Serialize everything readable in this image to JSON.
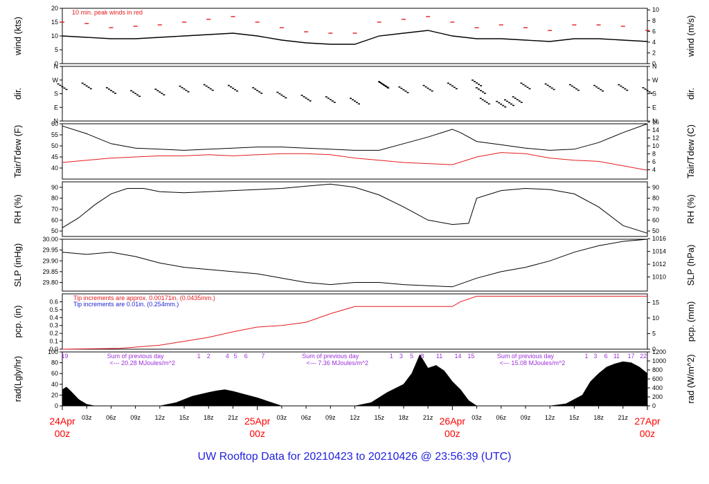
{
  "title": "UW Rooftop Data for 20210423  to  20210426 @ 23:56:39  (UTC)",
  "colors": {
    "primary": "#000000",
    "secondary": "#e41a1c",
    "blue": "#1f1fd0",
    "purple": "#9b30d9",
    "date": "#ff0000",
    "title": "#2020e0"
  },
  "chart_data": {
    "type": "line",
    "x_unit": "hours since 2021-04-24 00z",
    "x_range": [
      0,
      72
    ],
    "date_labels": [
      {
        "day": "24Apr",
        "time": "00z",
        "x": 0
      },
      {
        "day": "25Apr",
        "time": "00z",
        "x": 24
      },
      {
        "day": "26Apr",
        "time": "00z",
        "x": 48
      },
      {
        "day": "27Apr",
        "time": "00z",
        "x": 72
      }
    ],
    "x_ticks": [
      {
        "x": 3,
        "label": "03z"
      },
      {
        "x": 6,
        "label": "06z"
      },
      {
        "x": 9,
        "label": "09z"
      },
      {
        "x": 12,
        "label": "12z"
      },
      {
        "x": 15,
        "label": "15z"
      },
      {
        "x": 18,
        "label": "18z"
      },
      {
        "x": 21,
        "label": "21z"
      },
      {
        "x": 27,
        "label": "03z"
      },
      {
        "x": 30,
        "label": "06z"
      },
      {
        "x": 33,
        "label": "09z"
      },
      {
        "x": 36,
        "label": "12z"
      },
      {
        "x": 39,
        "label": "15z"
      },
      {
        "x": 42,
        "label": "18z"
      },
      {
        "x": 45,
        "label": "21z"
      },
      {
        "x": 51,
        "label": "03z"
      },
      {
        "x": 54,
        "label": "06z"
      },
      {
        "x": 57,
        "label": "09z"
      },
      {
        "x": 60,
        "label": "12z"
      },
      {
        "x": 63,
        "label": "15z"
      },
      {
        "x": 66,
        "label": "18z"
      },
      {
        "x": 69,
        "label": "21z"
      }
    ],
    "panels": [
      {
        "id": "wind",
        "ylabel": "wind (kts)",
        "ylabel_right": "wind (m/s)",
        "ylim": [
          0,
          20
        ],
        "yticks": [
          "0",
          "5",
          "10",
          "15",
          "20"
        ],
        "yticks_right": [
          "0",
          "2",
          "4",
          "6",
          "8",
          "10"
        ],
        "annotation": "10 min. peak winds in red",
        "series": [
          {
            "style": "line",
            "x": [
              0,
              3,
              6,
              9,
              12,
              15,
              18,
              21,
              24,
              27,
              30,
              33,
              36,
              39,
              42,
              45,
              48,
              51,
              54,
              57,
              60,
              63,
              66,
              69,
              72
            ],
            "y": [
              10,
              9.5,
              9,
              9,
              9.5,
              10,
              10.5,
              11,
              10,
              8.5,
              7.5,
              7,
              7,
              10,
              11,
              12,
              10,
              9,
              9,
              8.5,
              8,
              9,
              9,
              8.5,
              8
            ]
          },
          {
            "style": "dash",
            "x": [
              0,
              3,
              6,
              9,
              12,
              15,
              18,
              21,
              24,
              27,
              30,
              33,
              36,
              39,
              42,
              45,
              48,
              51,
              54,
              57,
              60,
              63,
              66,
              69,
              72
            ],
            "y": [
              15,
              14.5,
              13,
              13.5,
              14,
              15,
              16,
              17,
              15,
              13,
              11.5,
              11,
              11,
              15,
              16,
              17,
              15,
              13,
              14,
              13,
              12,
              14,
              14,
              13.5,
              12
            ]
          }
        ]
      },
      {
        "id": "dir",
        "ylabel": "dir.",
        "ylabel_right": "dir.",
        "ylim": [
          0,
          360
        ],
        "yticks": [
          "N",
          "E",
          "S",
          "W",
          "N"
        ],
        "yticks_right": [
          "N",
          "E",
          "S",
          "W",
          "N"
        ],
        "series": [
          {
            "style": "dots",
            "x": [
              0,
              3,
              6,
              9,
              12,
              15,
              18,
              21,
              24,
              27,
              30,
              33,
              36,
              39.5,
              39.6,
              42,
              45,
              48,
              51,
              51.5,
              52,
              54,
              55,
              56,
              57,
              60,
              63,
              66,
              69,
              72
            ],
            "y": [
              225,
              230,
              200,
              180,
              190,
              210,
              220,
              215,
              200,
              170,
              150,
              140,
              130,
              240,
              235,
              205,
              215,
              230,
              250,
              200,
              130,
              110,
              120,
              140,
              230,
              225,
              220,
              215,
              220,
              200
            ]
          }
        ]
      },
      {
        "id": "temp",
        "ylabel": "Tair/Tdew (F)",
        "ylabel_right": "Tair/Tdew (C)",
        "ylim": [
          35,
          60
        ],
        "yticks": [
          "40",
          "45",
          "50",
          "55",
          "60"
        ],
        "yticks_right": [
          "4",
          "6",
          "8",
          "10",
          "12",
          "14",
          "16"
        ],
        "series": [
          {
            "style": "line",
            "x": [
              0,
              3,
              6,
              9,
              12,
              15,
              18,
              21,
              24,
              27,
              30,
              33,
              36,
              39,
              42,
              45,
              48,
              49,
              51,
              54,
              57,
              60,
              63,
              66,
              69,
              72
            ],
            "y": [
              59,
              55.5,
              51,
              49,
              48.5,
              48,
              48.5,
              49,
              49.5,
              49.5,
              49,
              48.5,
              48,
              48,
              51,
              54,
              57.5,
              56,
              52,
              50.5,
              49,
              48,
              48.5,
              51.5,
              56,
              60
            ]
          },
          {
            "style": "line_red",
            "x": [
              0,
              3,
              6,
              9,
              12,
              15,
              18,
              21,
              24,
              27,
              30,
              33,
              36,
              39,
              42,
              45,
              48,
              51,
              54,
              57,
              60,
              63,
              66,
              69,
              72
            ],
            "y": [
              42.5,
              43.5,
              44.5,
              45,
              45.5,
              45.5,
              46,
              45.5,
              46,
              46.5,
              46.5,
              46,
              44.5,
              43.5,
              42.5,
              42,
              41.5,
              45,
              47,
              46.5,
              44.5,
              43.5,
              43,
              41,
              39
            ]
          }
        ]
      },
      {
        "id": "rh",
        "ylabel": "RH (%)",
        "ylabel_right": "RH (%)",
        "ylim": [
          45,
          95
        ],
        "yticks": [
          "50",
          "60",
          "70",
          "80",
          "90"
        ],
        "yticks_right": [
          "50",
          "60",
          "70",
          "80",
          "90"
        ],
        "series": [
          {
            "style": "line",
            "x": [
              0,
              2,
              4,
              6,
              8,
              10,
              12,
              15,
              18,
              21,
              24,
              27,
              30,
              33,
              36,
              39,
              42,
              45,
              48,
              50,
              51,
              54,
              57,
              60,
              63,
              66,
              69,
              72
            ],
            "y": [
              53,
              62,
              74,
              84,
              89,
              89,
              86,
              85,
              86,
              87,
              88,
              89,
              91,
              93,
              90,
              83,
              72,
              60,
              56,
              57,
              80,
              87,
              89,
              88,
              84,
              72,
              55,
              48
            ]
          }
        ]
      },
      {
        "id": "slp",
        "ylabel": "SLP (inHg)",
        "ylabel_right": "SLP (hPa)",
        "ylim": [
          29.76,
          30.0
        ],
        "yticks": [
          "29.80",
          "29.85",
          "29.90",
          "29.95",
          "30.00"
        ],
        "yticks_right": [
          "1010",
          "1012",
          "1014",
          "1016"
        ],
        "series": [
          {
            "style": "line",
            "x": [
              0,
              3,
              6,
              9,
              12,
              15,
              18,
              21,
              24,
              27,
              30,
              33,
              36,
              39,
              42,
              45,
              48,
              51,
              54,
              57,
              60,
              63,
              66,
              69,
              72
            ],
            "y": [
              29.94,
              29.93,
              29.94,
              29.92,
              29.89,
              29.87,
              29.86,
              29.85,
              29.84,
              29.82,
              29.8,
              29.79,
              29.8,
              29.8,
              29.79,
              29.785,
              29.78,
              29.82,
              29.85,
              29.87,
              29.9,
              29.94,
              29.97,
              29.99,
              30.0
            ]
          }
        ]
      },
      {
        "id": "pcp",
        "ylabel": "pcp. (in)",
        "ylabel_right": "pcp. (mm)",
        "ylim": [
          0,
          0.7
        ],
        "yticks": [
          "0.0",
          "0.1",
          "0.2",
          "0.3",
          "0.4",
          "0.5",
          "0.6"
        ],
        "yticks_right": [
          "0",
          "5",
          "10",
          "15"
        ],
        "annotation_red": "Tip increments are approx. 0.00171in. (0.0435mm.)",
        "annotation_blue": "Tip increments are 0.01in. (0.254mm.)",
        "series": [
          {
            "style": "line_red",
            "x": [
              0,
              7,
              12,
              15,
              18,
              21,
              24,
              27,
              30,
              33,
              36,
              48,
              49,
              51,
              72
            ],
            "y": [
              0,
              0.01,
              0.05,
              0.1,
              0.15,
              0.22,
              0.28,
              0.3,
              0.34,
              0.45,
              0.54,
              0.54,
              0.6,
              0.67,
              0.67
            ]
          }
        ]
      },
      {
        "id": "rad",
        "ylabel": "rad(Lgly/hr)",
        "ylabel_right": "rad (W/m^2)",
        "ylim": [
          0,
          100
        ],
        "yticks": [
          "0",
          "20",
          "40",
          "60",
          "80",
          "100"
        ],
        "yticks_right": [
          "0",
          "200",
          "400",
          "600",
          "800",
          "1000",
          "1200"
        ],
        "sum_notes": [
          {
            "title": "Sum of previous day",
            "value": "<--- 20.28 MJoules/m^2",
            "x": 9
          },
          {
            "title": "Sum of previous day",
            "value": "<--- 7.36 MJoules/m^2",
            "x": 33
          },
          {
            "title": "Sum of previous day",
            "value": "<--- 15.08 MJoules/m^2",
            "x": 57
          }
        ],
        "hour_labels": [
          {
            "x": 0.3,
            "label": "19"
          },
          {
            "x": 16.8,
            "label": "1"
          },
          {
            "x": 18,
            "label": "2"
          },
          {
            "x": 20.3,
            "label": "4"
          },
          {
            "x": 21.3,
            "label": "5"
          },
          {
            "x": 22.6,
            "label": "6"
          },
          {
            "x": 24.7,
            "label": "7"
          },
          {
            "x": 40.5,
            "label": "1"
          },
          {
            "x": 41.7,
            "label": "3"
          },
          {
            "x": 43,
            "label": "5"
          },
          {
            "x": 44.3,
            "label": "8"
          },
          {
            "x": 46.4,
            "label": "11"
          },
          {
            "x": 48.7,
            "label": "14"
          },
          {
            "x": 50.3,
            "label": "15"
          },
          {
            "x": 64.5,
            "label": "1"
          },
          {
            "x": 65.6,
            "label": "3"
          },
          {
            "x": 66.9,
            "label": "6"
          },
          {
            "x": 68.2,
            "label": "11"
          },
          {
            "x": 70,
            "label": "17"
          },
          {
            "x": 71.5,
            "label": "22"
          }
        ],
        "series": [
          {
            "style": "area",
            "x": [
              0,
              0.5,
              1,
              2,
              3,
              4,
              12,
              14,
              16,
              18,
              19,
              20,
              21,
              22,
              24,
              26,
              27,
              36,
              38,
              40,
              42,
              43,
              44,
              45,
              46,
              47,
              48,
              49,
              50,
              51,
              60,
              62,
              64,
              65,
              66,
              67,
              68,
              69,
              70,
              71,
              72
            ],
            "y": [
              30,
              35,
              28,
              12,
              3,
              0,
              0,
              6,
              18,
              25,
              28,
              30,
              27,
              23,
              15,
              5,
              0,
              0,
              6,
              25,
              40,
              60,
              95,
              70,
              75,
              65,
              45,
              30,
              10,
              0,
              0,
              4,
              20,
              45,
              60,
              72,
              78,
              82,
              80,
              72,
              60
            ]
          }
        ]
      }
    ]
  }
}
